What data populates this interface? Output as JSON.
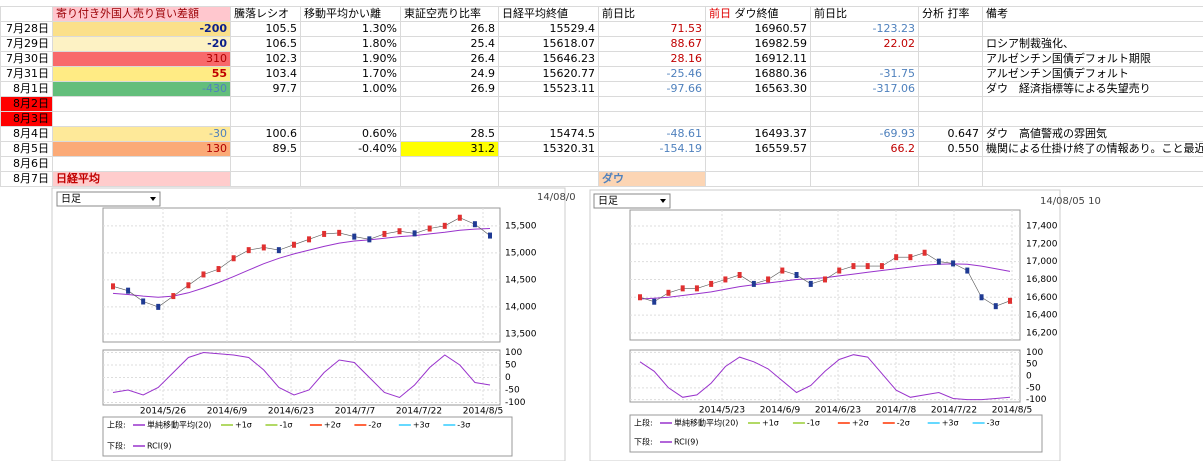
{
  "table": {
    "header": [
      null,
      "寄り付き外国人売り買い差額",
      "騰落レシオ",
      "移動平均かい離",
      "東証空売り比率",
      "日経平均終値",
      "前日比",
      [
        "前日",
        "ダウ終値"
      ],
      "前日比",
      [
        "分析",
        "打率"
      ],
      "備考"
    ],
    "rows": [
      [
        "7月28日",
        "-200",
        "105.5",
        "1.30%",
        "26.8",
        "15529.4",
        "71.53",
        "16960.57",
        "-123.23",
        null,
        null
      ],
      [
        "7月29日",
        "-20",
        "106.5",
        "1.80%",
        "25.4",
        "15618.07",
        "88.67",
        "16982.59",
        "22.02",
        null,
        "ロシア制裁強化、"
      ],
      [
        "7月30日",
        "310",
        "102.3",
        "1.90%",
        "26.4",
        "15646.23",
        "28.16",
        "16912.11",
        null,
        null,
        "アルゼンチン国債デフォルト期限"
      ],
      [
        "7月31日",
        "55",
        "103.4",
        "1.70%",
        "24.9",
        "15620.77",
        "-25.46",
        "16880.36",
        "-31.75",
        null,
        "アルゼンチン国債デフォルト"
      ],
      [
        "8月1日",
        "-430",
        "97.7",
        "1.00%",
        "26.9",
        "15523.11",
        "-97.66",
        "16563.30",
        "-317.06",
        null,
        "ダウ　経済指標等による失望売り"
      ],
      [
        "8月2日",
        null,
        null,
        null,
        null,
        null,
        null,
        null,
        null,
        null,
        null
      ],
      [
        "8月3日",
        null,
        null,
        null,
        null,
        null,
        null,
        null,
        null,
        null,
        null
      ],
      [
        "8月4日",
        "-30",
        "100.6",
        "0.60%",
        "28.5",
        "15474.5",
        "-48.61",
        "16493.37",
        "-69.93",
        "0.647",
        "ダウ　高値警戒の雰囲気"
      ],
      [
        "8月5日",
        "130",
        "89.5",
        "-0.40%",
        "31.2",
        "15320.31",
        "-154.19",
        "16559.57",
        "66.2",
        "0.550",
        "機関による仕掛け終了の情報あり。こと最近"
      ],
      [
        "8月6日",
        null,
        null,
        null,
        null,
        null,
        null,
        null,
        null,
        null,
        null
      ],
      [
        "8月7日",
        "日経平均",
        null,
        null,
        null,
        null,
        "ダウ",
        null,
        null,
        null,
        null
      ]
    ]
  },
  "charts": [
    {
      "dropdown": "日足",
      "stamp": "14/08/0",
      "ylim": [
        13350,
        15830
      ],
      "yticks": [
        {
          "value": 13500,
          "label": "13,500"
        },
        {
          "value": 14000,
          "label": "14,000"
        },
        {
          "value": 14500,
          "label": "14,500"
        },
        {
          "value": 15000,
          "label": "15,000"
        },
        {
          "value": 15500,
          "label": "15,500"
        }
      ],
      "rci_ylim": [
        -110,
        110
      ],
      "rci_yticks": [
        100,
        50,
        0,
        -50,
        -100
      ],
      "xlabels": [
        "2014/5/26",
        "2014/6/9",
        "2014/6/23",
        "2014/7/7",
        "2014/7/22",
        "2014/8/5"
      ],
      "close": [
        14380,
        14300,
        14100,
        14000,
        14200,
        14400,
        14600,
        14700,
        14900,
        15050,
        15100,
        15050,
        15150,
        15250,
        15350,
        15370,
        15300,
        15250,
        15350,
        15400,
        15360,
        15450,
        15500,
        15650,
        15530,
        15320
      ],
      "ma": [
        14250,
        14230,
        14200,
        14180,
        14200,
        14260,
        14350,
        14450,
        14560,
        14680,
        14800,
        14900,
        14980,
        15050,
        15120,
        15180,
        15220,
        15240,
        15270,
        15300,
        15320,
        15350,
        15380,
        15420,
        15440,
        15450
      ],
      "rci": [
        -60,
        -50,
        -70,
        -40,
        20,
        80,
        100,
        95,
        90,
        80,
        30,
        -40,
        -70,
        -50,
        20,
        70,
        60,
        0,
        -60,
        -80,
        -30,
        40,
        90,
        50,
        -20,
        -30
      ],
      "legend": {
        "upper": "上段:",
        "lower": "下段:",
        "items": [
          "単純移動平均(20)",
          "+1σ",
          "-1σ",
          "+2σ",
          "-2σ",
          "+3σ",
          "-3σ"
        ],
        "colors": [
          "#9933cc",
          "#99cc33",
          "#99cc33",
          "#ff3300",
          "#ff3300",
          "#33ccff",
          "#33ccff"
        ],
        "rci_item": "RCI(9)",
        "rci_color": "#9933cc"
      }
    },
    {
      "dropdown": "日足",
      "stamp": "14/08/05 10",
      "ylim": [
        16120,
        17580
      ],
      "yticks": [
        {
          "value": 16200,
          "label": "16,200"
        },
        {
          "value": 16400,
          "label": "16,400"
        },
        {
          "value": 16600,
          "label": "16,600"
        },
        {
          "value": 16800,
          "label": "16,800"
        },
        {
          "value": 17000,
          "label": "17,000"
        },
        {
          "value": 17200,
          "label": "17,200"
        },
        {
          "value": 17400,
          "label": "17,400"
        }
      ],
      "rci_ylim": [
        -110,
        110
      ],
      "rci_yticks": [
        100,
        50,
        0,
        -50,
        -100
      ],
      "xlabels": [
        "2014/5/23",
        "2014/6/9",
        "2014/6/23",
        "2014/7/8",
        "2014/7/22",
        "2014/8/5"
      ],
      "close": [
        16600,
        16550,
        16650,
        16700,
        16700,
        16750,
        16800,
        16850,
        16750,
        16800,
        16900,
        16850,
        16750,
        16800,
        16900,
        16950,
        16950,
        16950,
        17050,
        17050,
        17100,
        17000,
        16980,
        16900,
        16600,
        16500,
        16560
      ],
      "ma": [
        16580,
        16590,
        16600,
        16620,
        16640,
        16660,
        16690,
        16720,
        16740,
        16760,
        16780,
        16800,
        16810,
        16820,
        16840,
        16860,
        16880,
        16900,
        16920,
        16940,
        16960,
        16970,
        16975,
        16970,
        16950,
        16920,
        16890
      ],
      "rci": [
        60,
        20,
        -50,
        -90,
        -80,
        -30,
        40,
        80,
        60,
        30,
        -20,
        -70,
        -40,
        20,
        70,
        90,
        80,
        10,
        -60,
        -90,
        -80,
        -70,
        -95,
        -100,
        -100,
        -95,
        -90
      ],
      "legend": {
        "upper": "上段:",
        "lower": "下段:",
        "items": [
          "単純移動平均(20)",
          "+1σ",
          "-1σ",
          "+2σ",
          "-2σ",
          "+3σ",
          "-3σ"
        ],
        "colors": [
          "#9933cc",
          "#99cc33",
          "#99cc33",
          "#ff3300",
          "#ff3300",
          "#33ccff",
          "#33ccff"
        ],
        "rci_item": "RCI(9)",
        "rci_color": "#9933cc"
      }
    }
  ]
}
